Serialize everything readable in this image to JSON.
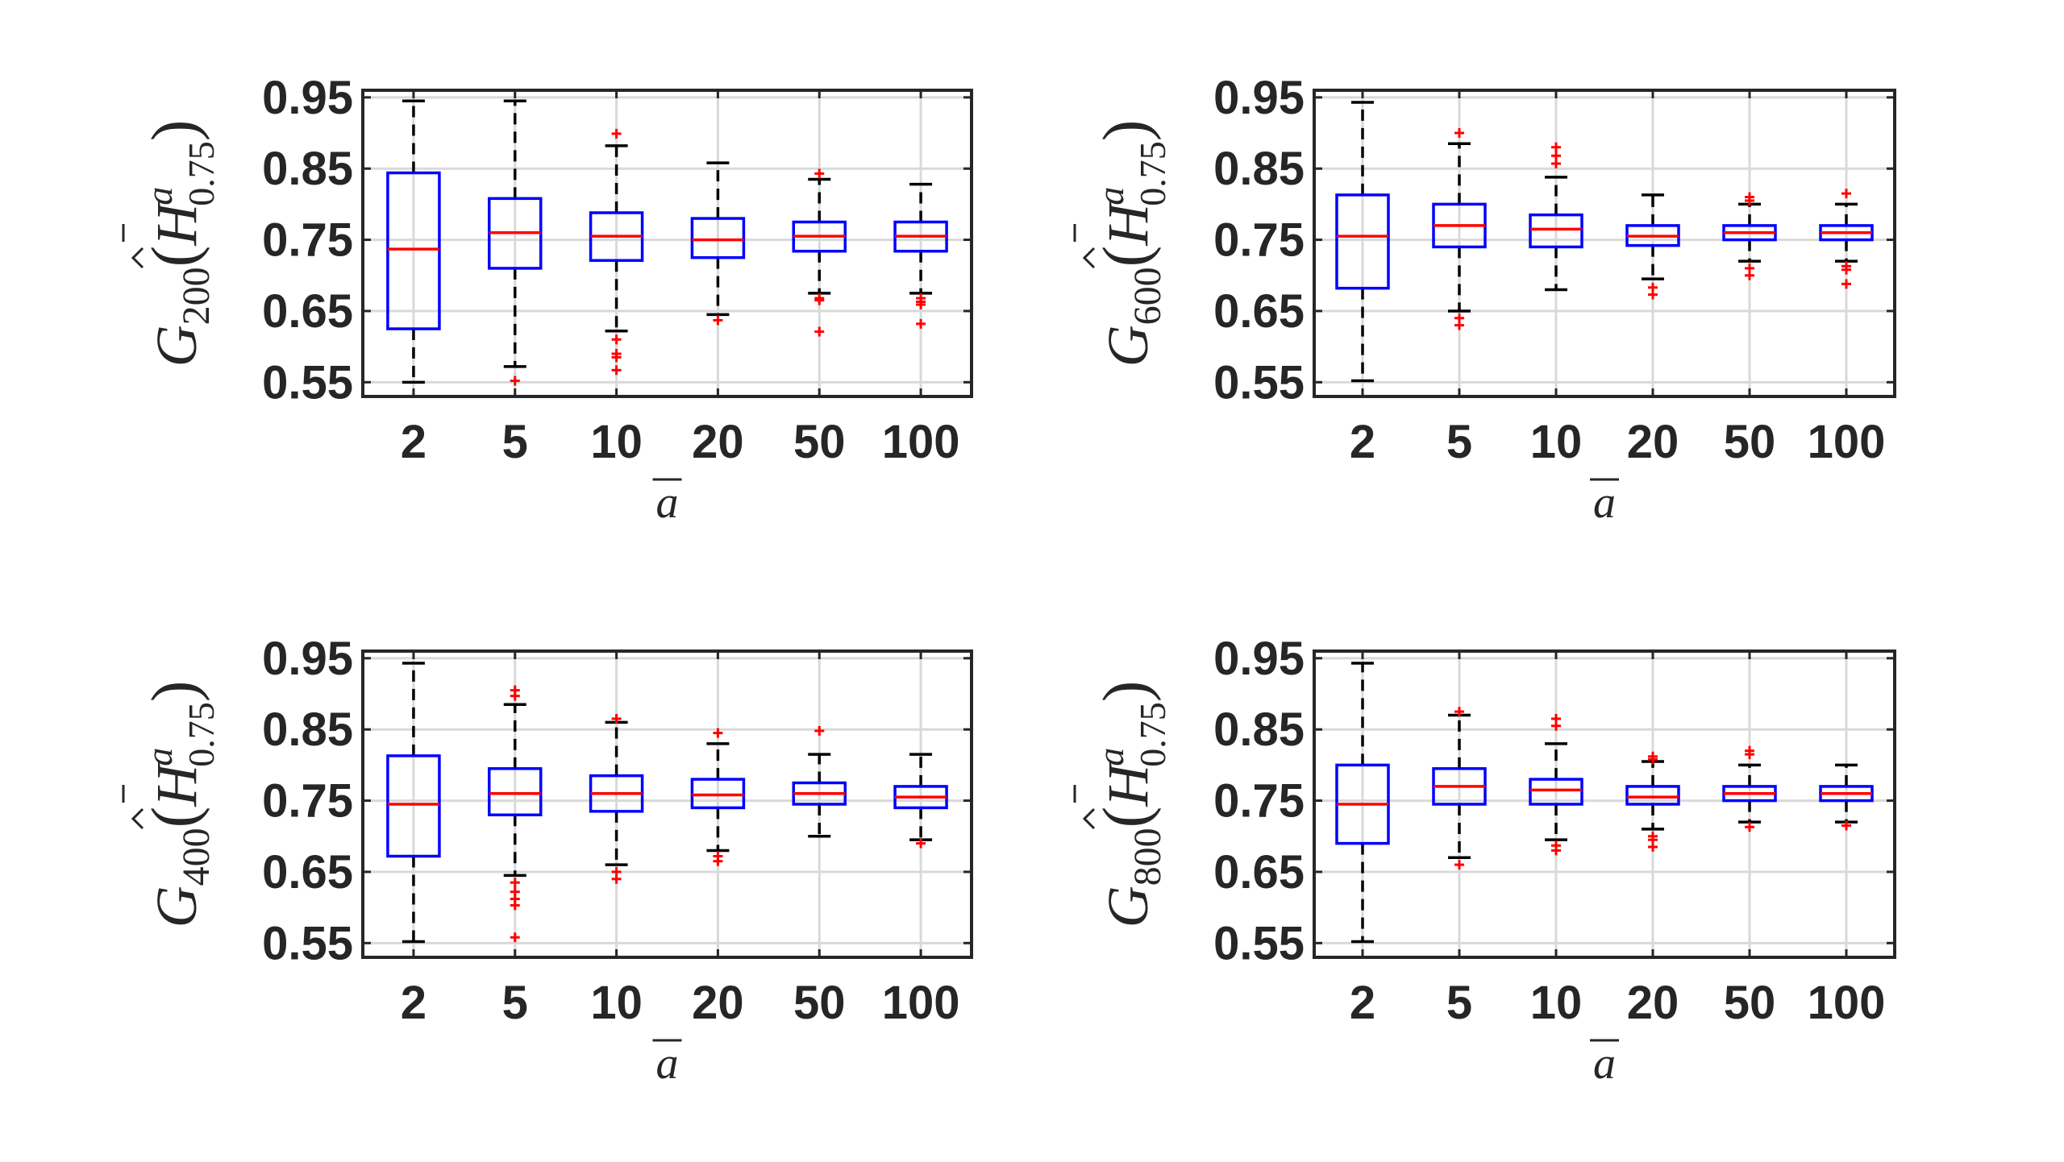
{
  "figure": {
    "colors": {
      "box": "#0000ff",
      "median": "#ff0000",
      "whisker": "#000000",
      "outlier": "#ff0000",
      "grid": "#d9d9d9",
      "axes": "#262626"
    }
  },
  "chart_data": [
    {
      "type": "boxplot",
      "ylabel": {
        "base": "G",
        "sub": "200",
        "hat_var": "H",
        "sub2": "0.75",
        "sup": "a"
      },
      "xlabel": "a",
      "categories": [
        "2",
        "5",
        "10",
        "20",
        "50",
        "100"
      ],
      "ylim": [
        0.53,
        0.96
      ],
      "yticks": [
        "0.55",
        "0.65",
        "0.75",
        "0.85",
        "0.95"
      ],
      "boxes": [
        {
          "lw": 0.55,
          "q1": 0.625,
          "med": 0.737,
          "q3": 0.844,
          "uw": 0.945,
          "outliers": []
        },
        {
          "lw": 0.572,
          "q1": 0.71,
          "med": 0.76,
          "q3": 0.808,
          "uw": 0.945,
          "outliers": [
            0.552
          ]
        },
        {
          "lw": 0.622,
          "q1": 0.721,
          "med": 0.755,
          "q3": 0.788,
          "uw": 0.882,
          "outliers": [
            0.899,
            0.61,
            0.59,
            0.585,
            0.567
          ]
        },
        {
          "lw": 0.645,
          "q1": 0.725,
          "med": 0.75,
          "q3": 0.78,
          "uw": 0.858,
          "outliers": [
            0.637
          ]
        },
        {
          "lw": 0.675,
          "q1": 0.734,
          "med": 0.755,
          "q3": 0.775,
          "uw": 0.835,
          "outliers": [
            0.843,
            0.668,
            0.665,
            0.621
          ]
        },
        {
          "lw": 0.675,
          "q1": 0.734,
          "med": 0.755,
          "q3": 0.775,
          "uw": 0.828,
          "outliers": [
            0.668,
            0.663,
            0.659,
            0.632
          ]
        }
      ]
    },
    {
      "type": "boxplot",
      "ylabel": {
        "base": "G",
        "sub": "600",
        "hat_var": "H",
        "sub2": "0.75",
        "sup": "a"
      },
      "xlabel": "a",
      "categories": [
        "2",
        "5",
        "10",
        "20",
        "50",
        "100"
      ],
      "ylim": [
        0.53,
        0.96
      ],
      "yticks": [
        "0.55",
        "0.65",
        "0.75",
        "0.85",
        "0.95"
      ],
      "boxes": [
        {
          "lw": 0.552,
          "q1": 0.682,
          "med": 0.755,
          "q3": 0.813,
          "uw": 0.943,
          "outliers": []
        },
        {
          "lw": 0.65,
          "q1": 0.74,
          "med": 0.77,
          "q3": 0.8,
          "uw": 0.885,
          "outliers": [
            0.9,
            0.64,
            0.63
          ]
        },
        {
          "lw": 0.68,
          "q1": 0.74,
          "med": 0.765,
          "q3": 0.785,
          "uw": 0.838,
          "outliers": [
            0.88,
            0.868,
            0.857
          ]
        },
        {
          "lw": 0.695,
          "q1": 0.742,
          "med": 0.755,
          "q3": 0.77,
          "uw": 0.813,
          "outliers": [
            0.683,
            0.673
          ]
        },
        {
          "lw": 0.72,
          "q1": 0.75,
          "med": 0.76,
          "q3": 0.77,
          "uw": 0.8,
          "outliers": [
            0.81,
            0.805,
            0.71,
            0.7
          ]
        },
        {
          "lw": 0.72,
          "q1": 0.75,
          "med": 0.76,
          "q3": 0.77,
          "uw": 0.8,
          "outliers": [
            0.815,
            0.713,
            0.708,
            0.688
          ]
        }
      ]
    },
    {
      "type": "boxplot",
      "ylabel": {
        "base": "G",
        "sub": "400",
        "hat_var": "H",
        "sub2": "0.75",
        "sup": "a"
      },
      "xlabel": "a",
      "categories": [
        "2",
        "5",
        "10",
        "20",
        "50",
        "100"
      ],
      "ylim": [
        0.53,
        0.96
      ],
      "yticks": [
        "0.55",
        "0.65",
        "0.75",
        "0.85",
        "0.95"
      ],
      "boxes": [
        {
          "lw": 0.552,
          "q1": 0.672,
          "med": 0.745,
          "q3": 0.813,
          "uw": 0.943,
          "outliers": []
        },
        {
          "lw": 0.645,
          "q1": 0.73,
          "med": 0.76,
          "q3": 0.795,
          "uw": 0.885,
          "outliers": [
            0.905,
            0.897,
            0.635,
            0.622,
            0.612,
            0.603,
            0.558
          ]
        },
        {
          "lw": 0.66,
          "q1": 0.735,
          "med": 0.76,
          "q3": 0.785,
          "uw": 0.86,
          "outliers": [
            0.865,
            0.65,
            0.64
          ]
        },
        {
          "lw": 0.68,
          "q1": 0.74,
          "med": 0.758,
          "q3": 0.78,
          "uw": 0.83,
          "outliers": [
            0.845,
            0.672,
            0.665
          ]
        },
        {
          "lw": 0.7,
          "q1": 0.745,
          "med": 0.76,
          "q3": 0.775,
          "uw": 0.815,
          "outliers": [
            0.848
          ]
        },
        {
          "lw": 0.695,
          "q1": 0.74,
          "med": 0.755,
          "q3": 0.77,
          "uw": 0.815,
          "outliers": [
            0.69
          ]
        }
      ]
    },
    {
      "type": "boxplot",
      "ylabel": {
        "base": "G",
        "sub": "800",
        "hat_var": "H",
        "sub2": "0.75",
        "sup": "a"
      },
      "xlabel": "a",
      "categories": [
        "2",
        "5",
        "10",
        "20",
        "50",
        "100"
      ],
      "ylim": [
        0.53,
        0.96
      ],
      "yticks": [
        "0.55",
        "0.65",
        "0.75",
        "0.85",
        "0.95"
      ],
      "boxes": [
        {
          "lw": 0.552,
          "q1": 0.69,
          "med": 0.745,
          "q3": 0.8,
          "uw": 0.943,
          "outliers": []
        },
        {
          "lw": 0.67,
          "q1": 0.745,
          "med": 0.77,
          "q3": 0.795,
          "uw": 0.87,
          "outliers": [
            0.875,
            0.66
          ]
        },
        {
          "lw": 0.695,
          "q1": 0.745,
          "med": 0.765,
          "q3": 0.78,
          "uw": 0.83,
          "outliers": [
            0.865,
            0.855,
            0.687,
            0.68
          ]
        },
        {
          "lw": 0.71,
          "q1": 0.745,
          "med": 0.755,
          "q3": 0.77,
          "uw": 0.805,
          "outliers": [
            0.812,
            0.808,
            0.7,
            0.695,
            0.685
          ]
        },
        {
          "lw": 0.72,
          "q1": 0.75,
          "med": 0.76,
          "q3": 0.77,
          "uw": 0.8,
          "outliers": [
            0.82,
            0.815,
            0.713
          ]
        },
        {
          "lw": 0.72,
          "q1": 0.75,
          "med": 0.76,
          "q3": 0.77,
          "uw": 0.8,
          "outliers": [
            0.715
          ]
        }
      ]
    }
  ]
}
